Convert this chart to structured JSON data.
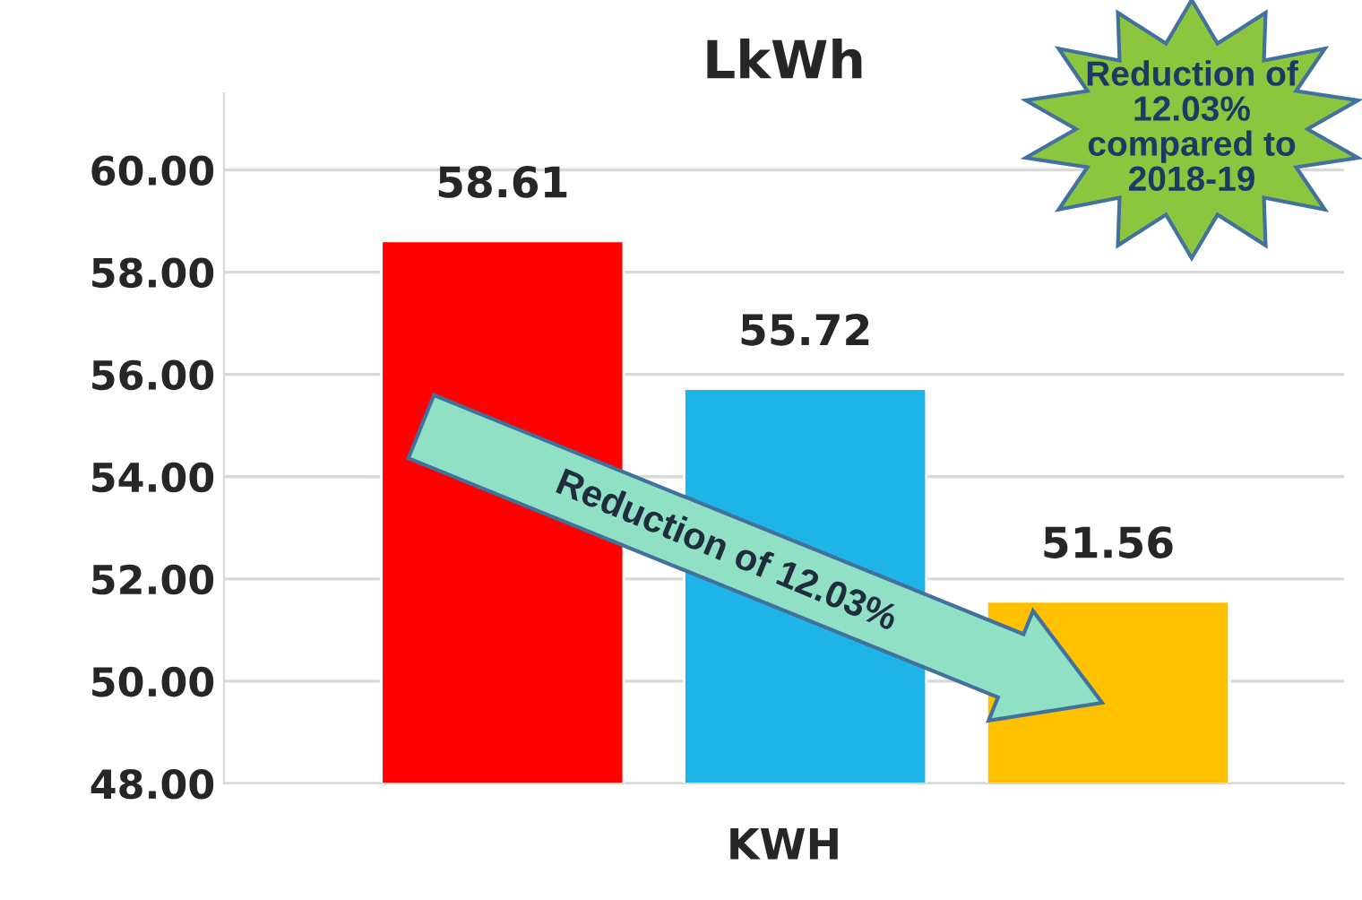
{
  "chart_data": {
    "type": "bar",
    "title": "LkWh",
    "xlabel": "KWH",
    "categories": [
      null,
      null,
      null
    ],
    "values": [
      58.61,
      55.72,
      51.56
    ],
    "colors": [
      "#ff0000",
      "#1eb4e8",
      "#ffc000"
    ],
    "ylim": [
      48,
      61.5
    ],
    "yticks": [
      {
        "value": 48,
        "label": "48.00"
      },
      {
        "value": 50,
        "label": "50.00"
      },
      {
        "value": 52,
        "label": "52.00"
      },
      {
        "value": 54,
        "label": "54.00"
      },
      {
        "value": 56,
        "label": "56.00"
      },
      {
        "value": 58,
        "label": "58.00"
      },
      {
        "value": 60,
        "label": "60.00"
      }
    ],
    "grid": "y",
    "data_labels": true,
    "legend": false,
    "annotations": [
      "Reduction of 12.03% compared to 2018-19",
      "Reduction of 12.03%"
    ]
  }
}
